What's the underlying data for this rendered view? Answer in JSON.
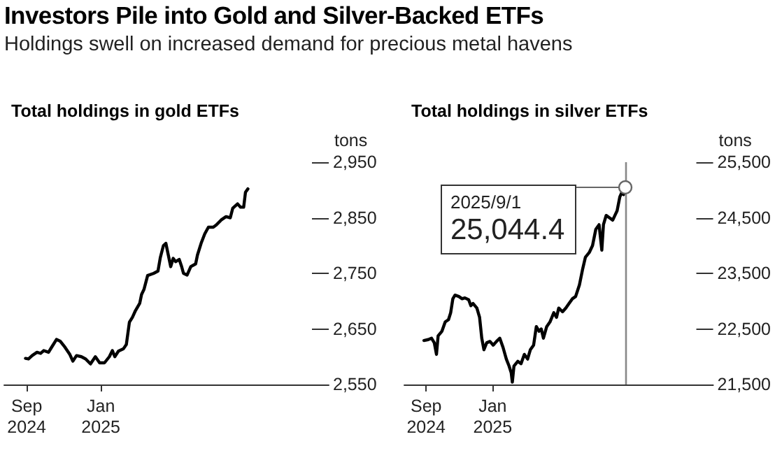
{
  "chart_data": [
    {
      "type": "other",
      "title": "Investors Pile into Gold and Silver-Backed ETFs",
      "subtitle": "Holdings swell on increased demand for precious metal havens"
    },
    {
      "type": "line",
      "title": "Total holdings in gold ETFs",
      "ylabel": "tons",
      "x": [
        "2024-08-30",
        "2024-09-04",
        "2024-09-10",
        "2024-09-18",
        "2024-09-24",
        "2024-09-29",
        "2024-10-07",
        "2024-10-12",
        "2024-10-20",
        "2024-10-26",
        "2024-11-03",
        "2024-11-11",
        "2024-11-16",
        "2024-11-22",
        "2024-11-30",
        "2024-12-07",
        "2024-12-15",
        "2024-12-23",
        "2024-12-30",
        "2025-01-07",
        "2025-01-15",
        "2025-01-20",
        "2025-01-24",
        "2025-01-30",
        "2025-02-07",
        "2025-02-12",
        "2025-02-17",
        "2025-02-22",
        "2025-02-27",
        "2025-03-06",
        "2025-03-09",
        "2025-03-13",
        "2025-03-19",
        "2025-03-29",
        "2025-04-05",
        "2025-04-09",
        "2025-04-14",
        "2025-04-18",
        "2025-04-22",
        "2025-04-26",
        "2025-04-30",
        "2025-05-04",
        "2025-05-10",
        "2025-05-14",
        "2025-05-17",
        "2025-05-23",
        "2025-05-29",
        "2025-06-06",
        "2025-06-09",
        "2025-06-15",
        "2025-06-21",
        "2025-06-27",
        "2025-07-05",
        "2025-07-10",
        "2025-07-18",
        "2025-07-26",
        "2025-08-02",
        "2025-08-06",
        "2025-08-14",
        "2025-08-19",
        "2025-08-24",
        "2025-08-27",
        "2025-08-31"
      ],
      "series": [
        {
          "color": "#000000",
          "values": [
            2597,
            2596,
            2602,
            2608,
            2606,
            2611,
            2608,
            2617,
            2631,
            2628,
            2617,
            2604,
            2592,
            2602,
            2600,
            2596,
            2587,
            2600,
            2589,
            2589,
            2600,
            2611,
            2600,
            2610,
            2614,
            2622,
            2662,
            2671,
            2683,
            2696,
            2712,
            2721,
            2746,
            2750,
            2754,
            2779,
            2800,
            2804,
            2783,
            2762,
            2777,
            2771,
            2775,
            2762,
            2750,
            2747,
            2762,
            2767,
            2783,
            2804,
            2821,
            2833,
            2833,
            2837,
            2846,
            2852,
            2850,
            2867,
            2875,
            2869,
            2869,
            2896,
            2902
          ]
        }
      ],
      "xlim": [
        "2024-07-26",
        "2026-01-11"
      ],
      "xticks": [
        {
          "value": "2024-09-01",
          "label": "Sep\n2024"
        },
        {
          "value": "2025-01-01",
          "label": "Jan\n2025"
        }
      ],
      "ylim": [
        2550,
        2950
      ],
      "yticks": [
        {
          "value": 2550,
          "label": "2,550"
        },
        {
          "value": 2650,
          "label": "2,650"
        },
        {
          "value": 2750,
          "label": "2,750"
        },
        {
          "value": 2850,
          "label": "2,850"
        },
        {
          "value": 2950,
          "label": "2,950"
        }
      ]
    },
    {
      "type": "line",
      "title": "Total holdings in silver ETFs",
      "ylabel": "tons",
      "x": [
        "2024-08-28",
        "2024-09-05",
        "2024-09-11",
        "2024-09-16",
        "2024-09-20",
        "2024-09-23",
        "2024-09-30",
        "2024-10-06",
        "2024-10-12",
        "2024-10-16",
        "2024-10-20",
        "2024-10-24",
        "2024-10-31",
        "2024-11-06",
        "2024-11-11",
        "2024-11-18",
        "2024-11-22",
        "2024-11-26",
        "2024-12-03",
        "2024-12-08",
        "2024-12-12",
        "2024-12-16",
        "2024-12-21",
        "2024-12-27",
        "2025-01-02",
        "2025-01-08",
        "2025-01-14",
        "2025-01-20",
        "2025-01-26",
        "2025-01-31",
        "2025-02-04",
        "2025-02-06",
        "2025-02-09",
        "2025-02-16",
        "2025-02-22",
        "2025-02-28",
        "2025-03-06",
        "2025-03-11",
        "2025-03-17",
        "2025-03-22",
        "2025-03-27",
        "2025-03-31",
        "2025-04-04",
        "2025-04-10",
        "2025-04-16",
        "2025-04-23",
        "2025-04-28",
        "2025-05-02",
        "2025-05-09",
        "2025-05-15",
        "2025-05-21",
        "2025-05-27",
        "2025-06-02",
        "2025-06-09",
        "2025-06-15",
        "2025-06-20",
        "2025-06-27",
        "2025-07-03",
        "2025-07-09",
        "2025-07-15",
        "2025-07-20",
        "2025-07-23",
        "2025-07-28",
        "2025-08-03",
        "2025-08-09",
        "2025-08-13",
        "2025-08-17",
        "2025-08-22",
        "2025-08-25",
        "2025-08-29",
        "2025-09-01"
      ],
      "series": [
        {
          "color": "#000000",
          "values": [
            22292,
            22308,
            22333,
            22250,
            22042,
            22375,
            22458,
            22625,
            22667,
            22792,
            23042,
            23108,
            23083,
            23042,
            23058,
            23025,
            22917,
            22958,
            22875,
            22708,
            22333,
            22125,
            22250,
            22275,
            22208,
            22275,
            22333,
            22167,
            21958,
            21833,
            21708,
            21542,
            21833,
            21917,
            21875,
            22042,
            21958,
            22125,
            22208,
            22542,
            22458,
            22500,
            22333,
            22542,
            22625,
            22792,
            22708,
            22875,
            22808,
            22875,
            22958,
            23042,
            23083,
            23292,
            23583,
            23792,
            23875,
            24000,
            24292,
            24375,
            23917,
            24375,
            24542,
            24500,
            24458,
            24542,
            24625,
            24875,
            24942,
            24917,
            25044.4
          ]
        }
      ],
      "xlim": [
        "2024-07-23",
        "2026-02-09"
      ],
      "xticks": [
        {
          "value": "2024-09-01",
          "label": "Sep\n2024"
        },
        {
          "value": "2025-01-01",
          "label": "Jan\n2025"
        }
      ],
      "ylim": [
        21500,
        25500
      ],
      "yticks": [
        {
          "value": 21500,
          "label": "21,500"
        },
        {
          "value": 22500,
          "label": "22,500"
        },
        {
          "value": 23500,
          "label": "23,500"
        },
        {
          "value": 24500,
          "label": "24,500"
        },
        {
          "value": 25500,
          "label": "25,500"
        }
      ],
      "ref_lines": [
        {
          "axis": "x",
          "value": "2025-09-01",
          "color": "#888888"
        }
      ],
      "annotations": [
        "2025/9/1",
        {
          "text": "25,044.4",
          "x": "2025-09-01",
          "y": 25044.4
        }
      ]
    }
  ]
}
